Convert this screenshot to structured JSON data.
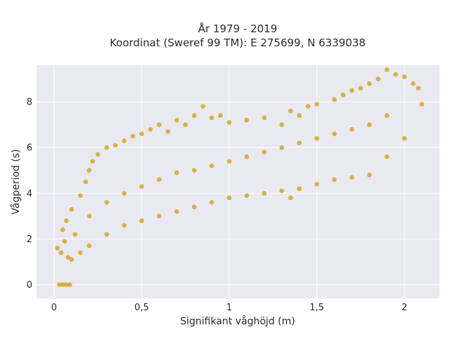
{
  "chart_data": {
    "type": "scatter",
    "title": "År 1979 - 2019",
    "subtitle": "Koordinat (Sweref 99 TM): E 275699, N 6339038",
    "xlabel": "Signifikant våghöjd (m)",
    "ylabel": "Vågperiod (s)",
    "xlim": [
      -0.1,
      2.2
    ],
    "ylim": [
      -0.6,
      9.6
    ],
    "x_ticks": [
      0,
      0.5,
      1,
      1.5,
      2
    ],
    "x_tick_labels": [
      "0",
      "0,5",
      "1",
      "1,5",
      "2"
    ],
    "y_ticks": [
      0,
      2,
      4,
      6,
      8
    ],
    "y_tick_labels": [
      "0",
      "2",
      "4",
      "6",
      "8"
    ],
    "grid": true,
    "marker_color": "#D4A017",
    "plot_background": "#E9E9F1",
    "series": [
      {
        "points": [
          [
            0.03,
            0.0
          ],
          [
            0.05,
            0.0
          ],
          [
            0.07,
            0.0
          ],
          [
            0.09,
            0.0
          ],
          [
            0.02,
            1.6
          ],
          [
            0.04,
            1.4
          ],
          [
            0.06,
            1.9
          ],
          [
            0.05,
            2.4
          ],
          [
            0.08,
            1.2
          ],
          [
            0.07,
            2.8
          ],
          [
            0.1,
            3.3
          ],
          [
            0.12,
            2.2
          ],
          [
            0.15,
            3.9
          ],
          [
            0.18,
            4.5
          ],
          [
            0.2,
            5.0
          ],
          [
            0.22,
            5.4
          ],
          [
            0.25,
            5.7
          ],
          [
            0.3,
            6.0
          ],
          [
            0.35,
            6.1
          ],
          [
            0.4,
            6.3
          ],
          [
            0.45,
            6.5
          ],
          [
            0.5,
            6.6
          ],
          [
            0.55,
            6.8
          ],
          [
            0.6,
            7.0
          ],
          [
            0.65,
            6.7
          ],
          [
            0.7,
            7.2
          ],
          [
            0.75,
            7.0
          ],
          [
            0.8,
            7.4
          ],
          [
            0.85,
            7.8
          ],
          [
            0.9,
            7.3
          ],
          [
            0.95,
            7.4
          ],
          [
            1.0,
            7.1
          ],
          [
            1.1,
            7.2
          ],
          [
            1.2,
            7.3
          ],
          [
            1.3,
            7.0
          ],
          [
            1.35,
            7.6
          ],
          [
            1.4,
            7.4
          ],
          [
            1.45,
            7.8
          ],
          [
            1.5,
            7.9
          ],
          [
            1.6,
            8.1
          ],
          [
            1.65,
            8.3
          ],
          [
            1.7,
            8.5
          ],
          [
            1.75,
            8.6
          ],
          [
            1.8,
            8.8
          ],
          [
            1.85,
            9.0
          ],
          [
            1.9,
            9.4
          ],
          [
            1.95,
            9.2
          ],
          [
            2.0,
            9.1
          ],
          [
            2.05,
            8.8
          ],
          [
            2.08,
            8.6
          ],
          [
            2.1,
            7.9
          ],
          [
            0.1,
            1.1
          ],
          [
            0.15,
            1.4
          ],
          [
            0.2,
            1.7
          ],
          [
            0.3,
            2.2
          ],
          [
            0.4,
            2.6
          ],
          [
            0.5,
            2.8
          ],
          [
            0.6,
            3.0
          ],
          [
            0.7,
            3.2
          ],
          [
            0.8,
            3.4
          ],
          [
            0.9,
            3.6
          ],
          [
            1.0,
            3.8
          ],
          [
            1.1,
            3.9
          ],
          [
            1.2,
            4.0
          ],
          [
            1.3,
            4.1
          ],
          [
            1.35,
            3.8
          ],
          [
            1.4,
            4.2
          ],
          [
            1.5,
            4.4
          ],
          [
            1.6,
            4.6
          ],
          [
            1.7,
            4.7
          ],
          [
            1.8,
            4.8
          ],
          [
            1.9,
            5.6
          ],
          [
            2.0,
            6.4
          ],
          [
            0.2,
            3.0
          ],
          [
            0.3,
            3.6
          ],
          [
            0.4,
            4.0
          ],
          [
            0.5,
            4.3
          ],
          [
            0.6,
            4.6
          ],
          [
            0.7,
            4.9
          ],
          [
            0.8,
            5.0
          ],
          [
            0.9,
            5.2
          ],
          [
            1.0,
            5.4
          ],
          [
            1.1,
            5.6
          ],
          [
            1.2,
            5.8
          ],
          [
            1.3,
            6.0
          ],
          [
            1.4,
            6.2
          ],
          [
            1.5,
            6.4
          ],
          [
            1.6,
            6.6
          ],
          [
            1.7,
            6.8
          ],
          [
            1.8,
            7.0
          ],
          [
            1.9,
            7.4
          ]
        ]
      }
    ]
  }
}
